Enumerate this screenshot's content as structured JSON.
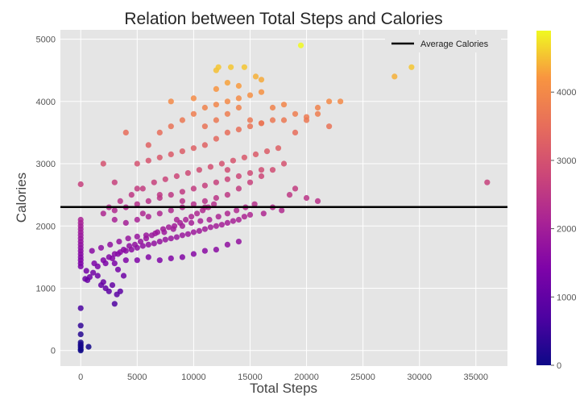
{
  "chart_data": {
    "type": "scatter",
    "title": "Relation between Total Steps and Calories",
    "xlabel": "Total Steps",
    "ylabel": "Calories",
    "xlim": [
      -1800,
      37800
    ],
    "ylim": [
      -250,
      5150
    ],
    "xticks": [
      0,
      5000,
      10000,
      15000,
      20000,
      25000,
      30000,
      35000
    ],
    "xtick_labels": [
      "0",
      "5000",
      "10000",
      "15000",
      "20000",
      "25000",
      "30000",
      "35000"
    ],
    "yticks": [
      0,
      1000,
      2000,
      3000,
      4000,
      5000
    ],
    "ytick_labels": [
      "0",
      "1000",
      "2000",
      "3000",
      "4000",
      "5000"
    ],
    "grid": true,
    "legend": {
      "placement": "top-right",
      "entries": [
        {
          "label": "Average Calories",
          "color": "#000000"
        }
      ]
    },
    "average_line": {
      "y": 2304,
      "color": "#000000"
    },
    "colorbar": {
      "colormap": "plasma",
      "range": [
        0,
        4900
      ],
      "ticks": [
        0,
        1000,
        2000,
        3000,
        4000
      ],
      "tick_labels": [
        "0",
        "1000",
        "2000",
        "3000",
        "4000"
      ]
    },
    "x": [
      0,
      0,
      0,
      0,
      0,
      0,
      0,
      0,
      0,
      0,
      0,
      0,
      0,
      0,
      0,
      0,
      0,
      0,
      0,
      0,
      0,
      0,
      0,
      0,
      0,
      0,
      700,
      400,
      600,
      800,
      1100,
      1500,
      1800,
      2000,
      2200,
      2500,
      2800,
      3000,
      3200,
      3500,
      3800,
      3300,
      500,
      1200,
      2000,
      2500,
      3000,
      3500,
      4000,
      4500,
      5000,
      5500,
      6000,
      6500,
      7000,
      7500,
      8000,
      8500,
      9000,
      9500,
      10000,
      10500,
      11000,
      11500,
      12000,
      12500,
      13000,
      13500,
      14000,
      14500,
      15000,
      1500,
      2200,
      2800,
      3300,
      3800,
      4300,
      4800,
      5300,
      5800,
      6300,
      6800,
      7300,
      7800,
      8300,
      8800,
      9300,
      9800,
      10300,
      10800,
      11300,
      11800,
      1000,
      1800,
      2600,
      3400,
      4200,
      5000,
      5800,
      6600,
      7400,
      8200,
      9000,
      9800,
      10600,
      11400,
      12200,
      13000,
      13800,
      14600,
      15400,
      16200,
      17000,
      17800,
      3000,
      4000,
      5000,
      6000,
      7000,
      8000,
      9000,
      10000,
      11000,
      12000,
      13000,
      14000,
      2000,
      3000,
      4000,
      5000,
      6000,
      7000,
      8000,
      9000,
      10000,
      11000,
      12000,
      13000,
      14000,
      15000,
      16000,
      2500,
      3500,
      4500,
      5500,
      6500,
      7500,
      8500,
      9500,
      10500,
      11500,
      12500,
      13500,
      14500,
      15500,
      16500,
      17500,
      18500,
      3000,
      4000,
      5000,
      6000,
      7000,
      8000,
      9000,
      10000,
      11000,
      12000,
      13000,
      14000,
      15000,
      16000,
      17000,
      18000,
      19000,
      20000,
      21000,
      5000,
      6000,
      7000,
      8000,
      9000,
      10000,
      11000,
      12000,
      13000,
      14000,
      15000,
      16000,
      17000,
      18000,
      19000,
      20000,
      21000,
      22000,
      6000,
      7000,
      8000,
      9000,
      10000,
      11000,
      12000,
      13000,
      14000,
      15000,
      16000,
      11000,
      12000,
      13000,
      14000,
      15000,
      16000,
      17000,
      18000,
      19000,
      20000,
      21000,
      22000,
      23000,
      8000,
      10000,
      12000,
      14000,
      16000,
      12000,
      13000,
      14500,
      15500,
      12200,
      13300,
      19500,
      27800,
      29300,
      36000,
      2000,
      3000,
      5000,
      7000,
      9000,
      11000,
      4000,
      13000,
      5500,
      8500
    ],
    "y": [
      0,
      20,
      50,
      80,
      100,
      130,
      260,
      400,
      680,
      1350,
      1400,
      1450,
      1500,
      1550,
      1600,
      1650,
      1700,
      1750,
      1800,
      1850,
      1900,
      1950,
      2000,
      2050,
      2100,
      2670,
      60,
      1150,
      1130,
      1180,
      1250,
      1200,
      1050,
      1100,
      1000,
      950,
      1050,
      750,
      900,
      950,
      1200,
      1300,
      1280,
      1400,
      1450,
      1500,
      1550,
      1580,
      1600,
      1620,
      1650,
      1680,
      1700,
      1720,
      1750,
      1780,
      1800,
      1820,
      1850,
      1870,
      1900,
      1920,
      1950,
      1980,
      2000,
      2020,
      2050,
      2080,
      2100,
      2150,
      2180,
      1350,
      1400,
      1480,
      1550,
      1620,
      1680,
      1700,
      1750,
      1800,
      1850,
      1900,
      1950,
      1980,
      2000,
      2050,
      2100,
      2150,
      2200,
      2250,
      2300,
      2350,
      1600,
      1650,
      1700,
      1750,
      1800,
      1830,
      1850,
      1880,
      1900,
      1950,
      2000,
      2050,
      2080,
      2100,
      2150,
      2200,
      2250,
      2300,
      2350,
      2200,
      2300,
      2250,
      1400,
      1450,
      1450,
      1500,
      1450,
      1480,
      1500,
      1550,
      1600,
      1620,
      1700,
      1750,
      2200,
      2250,
      2300,
      2350,
      2400,
      2450,
      2500,
      2550,
      2600,
      2650,
      2700,
      2750,
      2800,
      2850,
      2900,
      2300,
      2400,
      2500,
      2600,
      2700,
      2750,
      2800,
      2850,
      2900,
      2950,
      3000,
      3050,
      3100,
      3150,
      3200,
      3250,
      2500,
      2100,
      2050,
      2100,
      2150,
      2200,
      2250,
      2300,
      2350,
      2400,
      2450,
      2500,
      2600,
      2700,
      2800,
      2900,
      3000,
      2600,
      2450,
      2400,
      3000,
      3050,
      3100,
      3150,
      3200,
      3250,
      3300,
      3400,
      3500,
      3550,
      3600,
      3650,
      3700,
      3700,
      3500,
      3750,
      3800,
      3600,
      3300,
      3500,
      3600,
      3700,
      3800,
      3900,
      3950,
      4000,
      4050,
      4100,
      4150,
      3600,
      3700,
      3800,
      3900,
      3700,
      3650,
      3900,
      3950,
      3800,
      3700,
      3900,
      4000,
      4000,
      4000,
      4050,
      4200,
      4250,
      4350,
      4500,
      4300,
      4550,
      4400,
      4550,
      4550,
      4900,
      4400,
      4550,
      2700,
      3000,
      2700,
      2600,
      2500,
      2400,
      2300,
      3500,
      2900,
      2200,
      2100
    ]
  }
}
